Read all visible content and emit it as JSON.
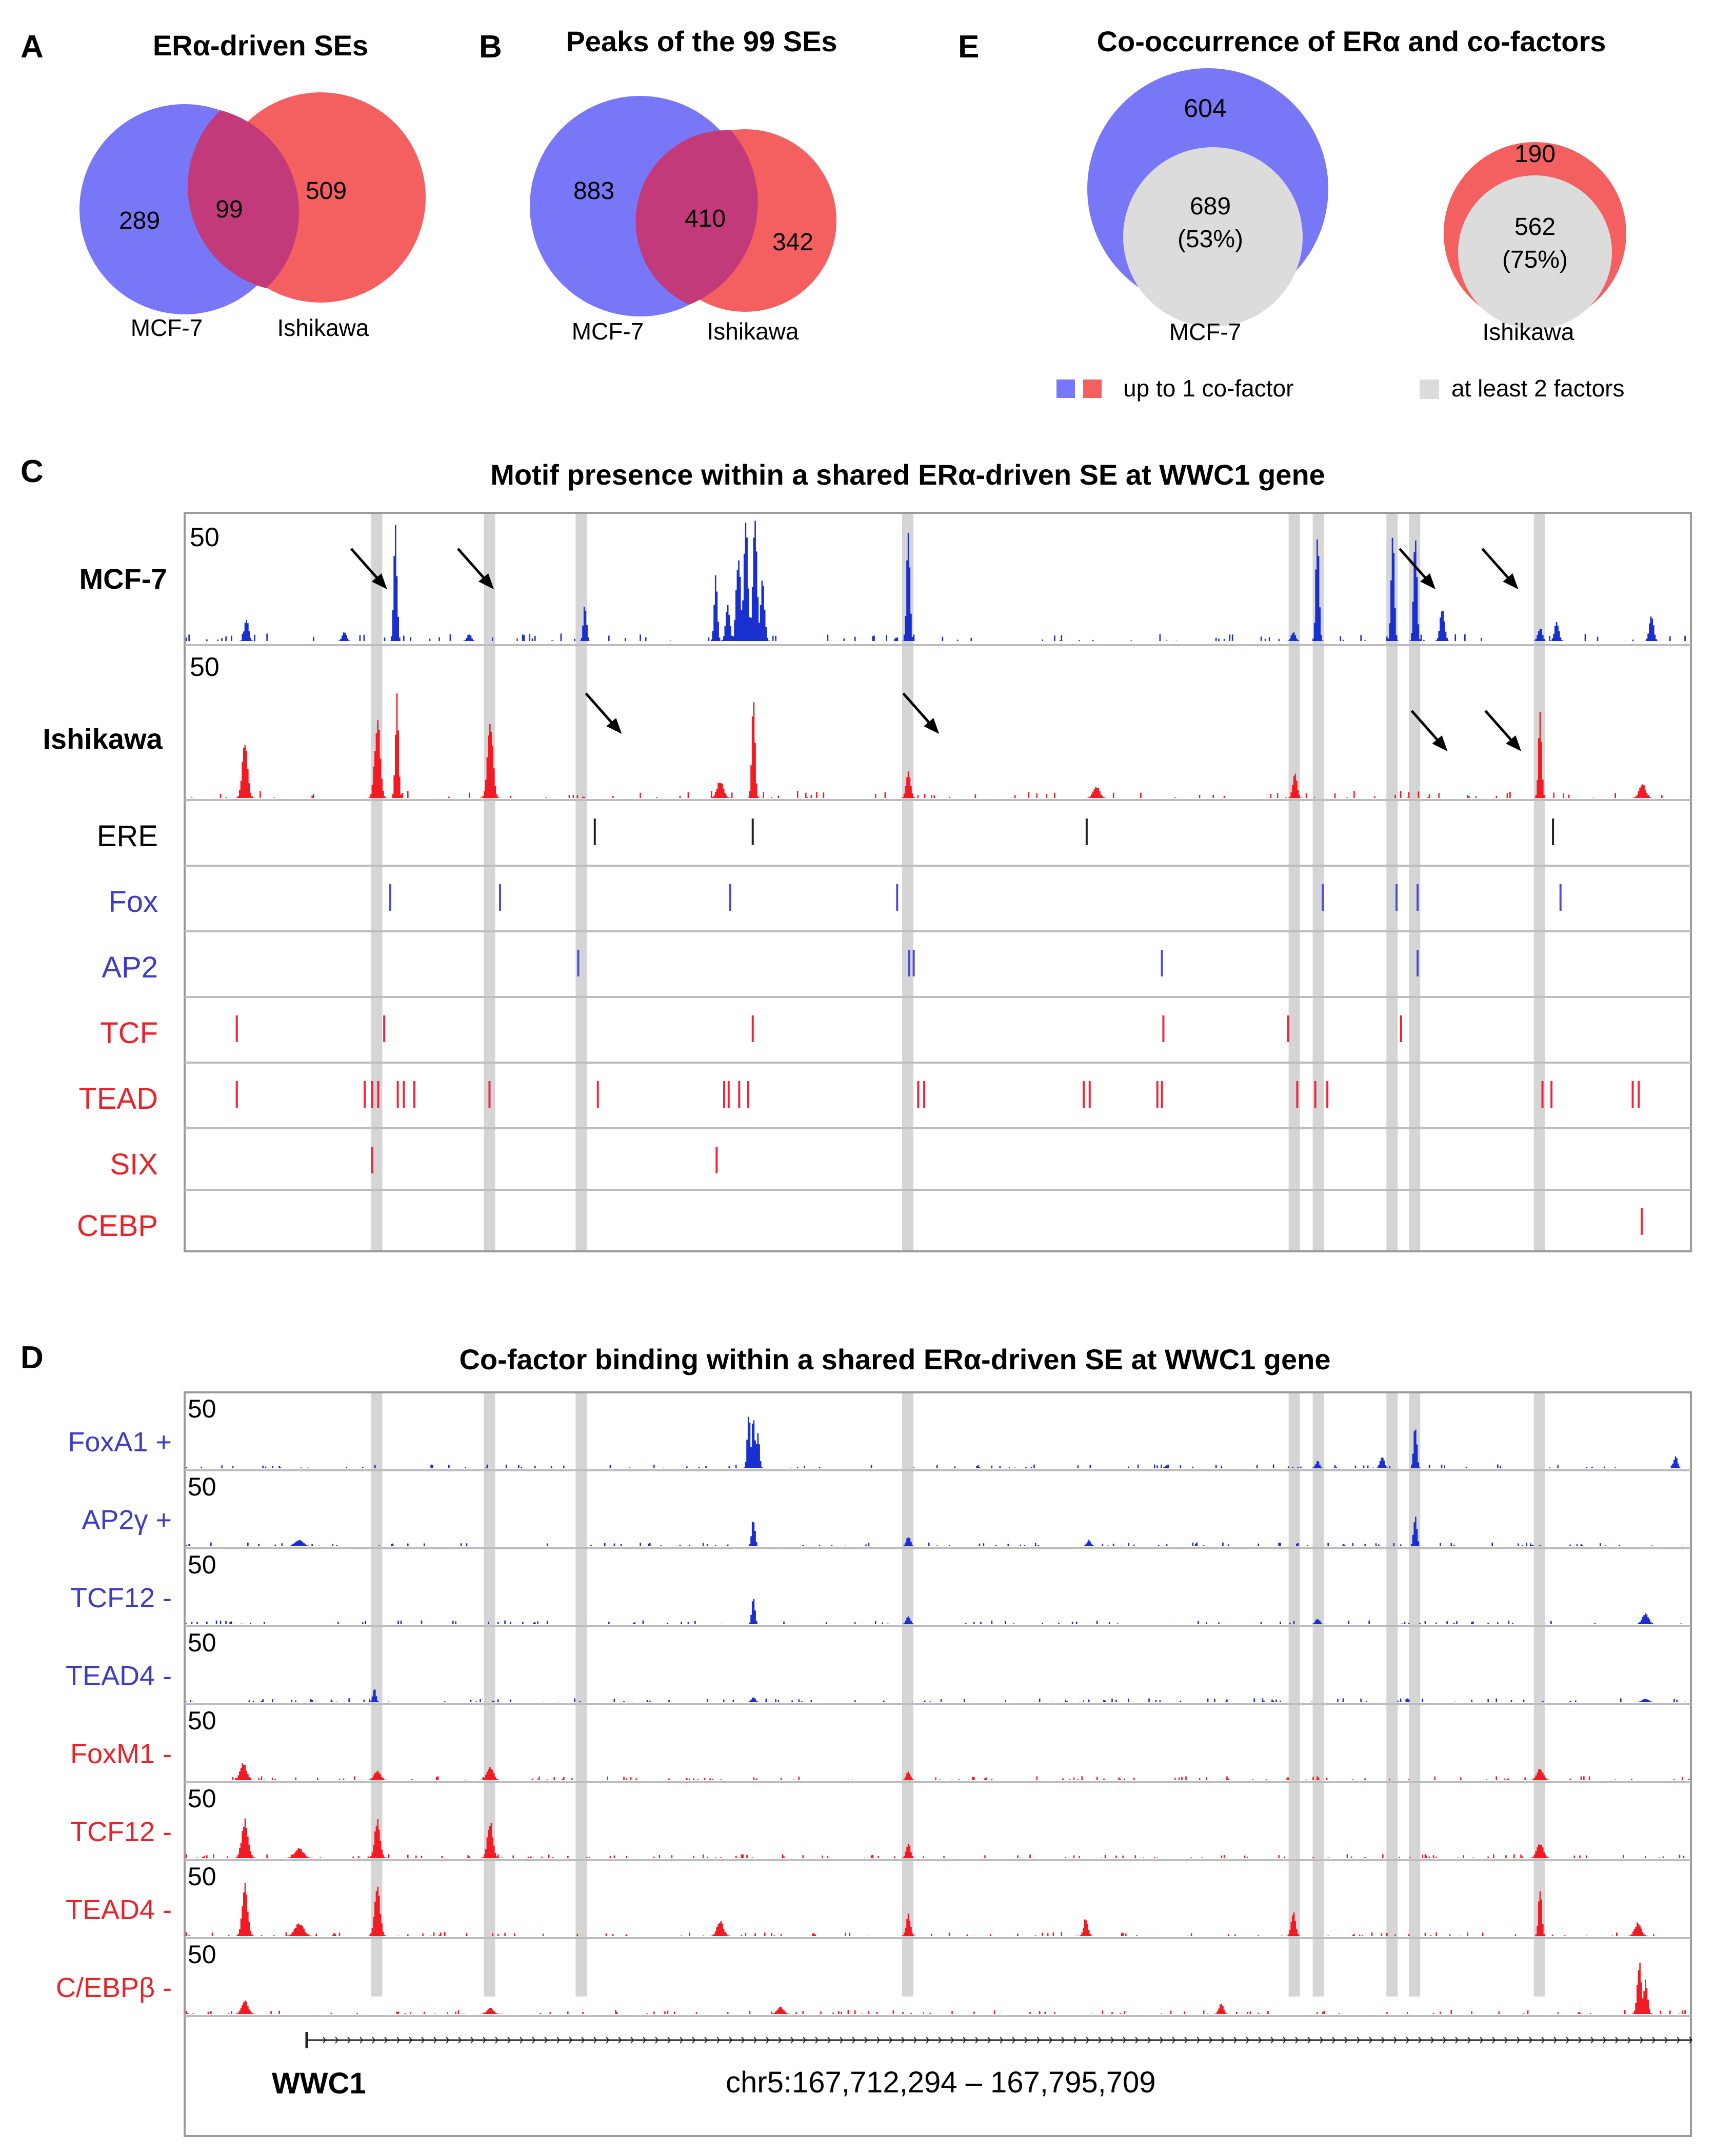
{
  "colors": {
    "mcf7": "#7777F8",
    "ishikawa": "#F46060",
    "overlap": "#C23A7A",
    "gray": "#DCDCDC",
    "track_blue": "#1A2FD0",
    "track_red": "#F21B23",
    "label_blue": "#3C3CC8",
    "label_red": "#E8242A",
    "highlight": "#D5D5D5"
  },
  "panel_a": {
    "letter": "A",
    "title": "ERα-driven  SEs",
    "left_only": "289",
    "overlap": "99",
    "right_only": "509",
    "left_label": "MCF-7",
    "right_label": "Ishikawa"
  },
  "panel_b": {
    "letter": "B",
    "title": "Peaks of the 99 SEs",
    "left_only": "883",
    "overlap": "410",
    "right_only": "342",
    "left_label": "MCF-7",
    "right_label": "Ishikawa"
  },
  "panel_e": {
    "letter": "E",
    "title": "Co-occurrence  of ERα  and  co-factors",
    "mcf7": {
      "label": "MCF-7",
      "outer": "604",
      "inner": "689",
      "inner_pct": "(53%)"
    },
    "ishikawa": {
      "label": "Ishikawa",
      "outer": "190",
      "inner": "562",
      "inner_pct": "(75%)"
    },
    "legend": {
      "up_to_one": "up to  1 co-factor",
      "at_least_two": "at least 2 factors"
    }
  },
  "panel_c": {
    "letter": "C",
    "title": "Motif presence within a shared ERα-driven SE at WWC1  gene",
    "scale": "50",
    "tracks": [
      {
        "label": "MCF-7",
        "color": "blue"
      },
      {
        "label": "Ishikawa",
        "color": "red"
      }
    ],
    "motifs": [
      {
        "name": "ERE",
        "color": "black",
        "positions": [
          0.272,
          0.377,
          0.599,
          0.909
        ]
      },
      {
        "name": "Fox",
        "color": "blue",
        "positions": [
          0.136,
          0.209,
          0.362,
          0.473,
          0.756,
          0.805,
          0.819,
          0.914
        ]
      },
      {
        "name": "AP2",
        "color": "blue",
        "positions": [
          0.261,
          0.481,
          0.484,
          0.649,
          0.819
        ]
      },
      {
        "name": "TCF",
        "color": "red",
        "positions": [
          0.034,
          0.132,
          0.377,
          0.65,
          0.733,
          0.808
        ]
      },
      {
        "name": "TEAD",
        "color": "red",
        "positions": [
          0.034,
          0.119,
          0.124,
          0.128,
          0.141,
          0.145,
          0.152,
          0.202,
          0.274,
          0.358,
          0.361,
          0.368,
          0.374,
          0.487,
          0.491,
          0.597,
          0.601,
          0.646,
          0.649,
          0.739,
          0.751,
          0.759,
          0.902,
          0.908,
          0.962,
          0.966
        ]
      },
      {
        "name": "SIX",
        "color": "red",
        "positions": [
          0.124,
          0.353
        ]
      },
      {
        "name": "CEBP",
        "color": "red",
        "positions": [
          0.968
        ]
      }
    ],
    "highlights": [
      0.127,
      0.202,
      0.263,
      0.48,
      0.737,
      0.753,
      0.802,
      0.817,
      0.9
    ]
  },
  "panel_d": {
    "letter": "D",
    "title": "Co-factor binding  within  a shared  ERα-driven SE at WWC1  gene",
    "scale": "50",
    "tracks": [
      {
        "label": "FoxA1  +",
        "color": "blue"
      },
      {
        "label": "AP2γ  +",
        "color": "blue"
      },
      {
        "label": "TCF12  -",
        "color": "blue"
      },
      {
        "label": "TEAD4  -",
        "color": "blue"
      },
      {
        "label": "FoxM1  -",
        "color": "red"
      },
      {
        "label": "TCF12  -",
        "color": "red"
      },
      {
        "label": "TEAD4  -",
        "color": "red"
      },
      {
        "label": "C/EBPβ  -",
        "color": "red"
      }
    ],
    "gene": "WWC1",
    "coords": "chr5:167,712,294   – 167,795,709"
  }
}
